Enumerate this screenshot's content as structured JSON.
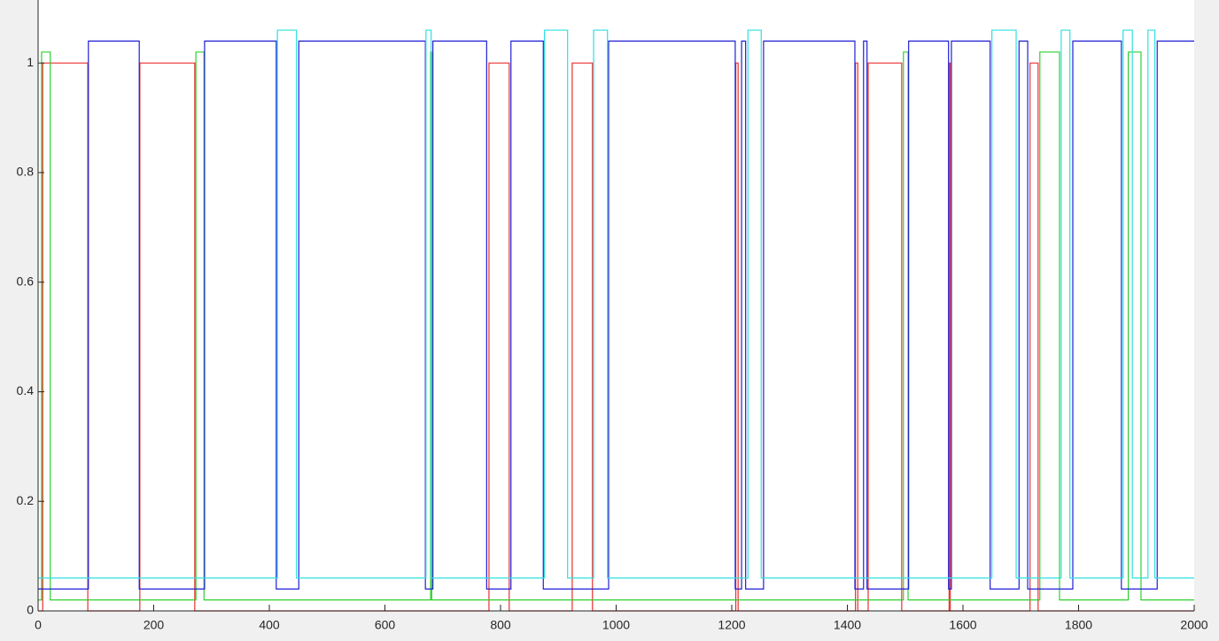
{
  "chart_data": {
    "type": "line",
    "xlim": [
      0,
      2000
    ],
    "ylim": [
      0,
      1.115
    ],
    "xticks": [
      0,
      200,
      400,
      600,
      800,
      1000,
      1200,
      1400,
      1600,
      1800,
      2000
    ],
    "yticks": [
      0,
      0.2,
      0.4,
      0.6,
      0.8,
      1
    ],
    "grid": false,
    "series": [
      {
        "color": "#e8312f",
        "x": [
          0,
          8,
          8,
          86,
          86,
          176,
          176,
          271,
          271,
          780,
          780,
          815,
          815,
          924,
          924,
          959,
          959,
          1207,
          1207,
          1211,
          1211,
          1414,
          1414,
          1418,
          1418,
          1436,
          1436,
          1494,
          1494,
          1576,
          1576,
          1578,
          1578,
          1716,
          1716,
          1730,
          1730,
          2000
        ],
        "values": [
          0,
          0,
          1,
          1,
          0,
          0,
          1,
          1,
          0,
          0,
          1,
          1,
          0,
          0,
          1,
          1,
          0,
          0,
          1,
          1,
          0,
          0,
          1,
          1,
          0,
          0,
          1,
          1,
          0,
          0,
          1,
          1,
          0,
          0,
          1,
          1,
          0,
          0
        ]
      },
      {
        "color": "#2fd02f",
        "x": [
          0,
          6,
          6,
          21,
          21,
          273,
          273,
          287,
          287,
          679,
          679,
          681,
          681,
          1497,
          1497,
          1505,
          1505,
          1733,
          1733,
          1767,
          1767,
          1886,
          1886,
          1908,
          1908,
          2000
        ],
        "values": [
          0.02,
          0.02,
          1.02,
          1.02,
          0.02,
          0.02,
          1.02,
          1.02,
          0.02,
          0.02,
          1.02,
          1.02,
          0.02,
          0.02,
          1.02,
          1.02,
          0.02,
          0.02,
          1.02,
          1.02,
          0.02,
          0.02,
          1.02,
          1.02,
          0.02,
          0.02
        ]
      },
      {
        "color": "#1f1fd6",
        "x": [
          0,
          87,
          87,
          175,
          175,
          288,
          288,
          412,
          412,
          451,
          451,
          670,
          670,
          683,
          683,
          776,
          776,
          818,
          818,
          874,
          874,
          987,
          987,
          1206,
          1206,
          1217,
          1217,
          1224,
          1224,
          1255,
          1255,
          1413,
          1413,
          1428,
          1428,
          1434,
          1434,
          1506,
          1506,
          1575,
          1575,
          1580,
          1580,
          1647,
          1647,
          1697,
          1697,
          1712,
          1712,
          1790,
          1790,
          1874,
          1874,
          1936,
          1936,
          2000
        ],
        "values": [
          0.04,
          0.04,
          1.04,
          1.04,
          0.04,
          0.04,
          1.04,
          1.04,
          0.04,
          0.04,
          1.04,
          1.04,
          0.04,
          0.04,
          1.04,
          1.04,
          0.04,
          0.04,
          1.04,
          1.04,
          0.04,
          0.04,
          1.04,
          1.04,
          0.04,
          0.04,
          1.04,
          1.04,
          0.04,
          0.04,
          1.04,
          1.04,
          0.04,
          0.04,
          1.04,
          1.04,
          0.04,
          0.04,
          1.04,
          1.04,
          0.04,
          0.04,
          1.04,
          1.04,
          0.04,
          0.04,
          1.04,
          1.04,
          0.04,
          0.04,
          1.04,
          1.04,
          0.04,
          0.04,
          1.04,
          1.04
        ]
      },
      {
        "color": "#2fe0e0",
        "x": [
          0,
          414,
          414,
          447,
          447,
          671,
          671,
          680,
          680,
          876,
          876,
          916,
          916,
          961,
          961,
          985,
          985,
          1228,
          1228,
          1251,
          1251,
          1650,
          1650,
          1692,
          1692,
          1770,
          1770,
          1785,
          1785,
          1877,
          1877,
          1893,
          1893,
          1920,
          1920,
          1932,
          1932,
          2000
        ],
        "values": [
          0.06,
          0.06,
          1.06,
          1.06,
          0.06,
          0.06,
          1.06,
          1.06,
          0.06,
          0.06,
          1.06,
          1.06,
          0.06,
          0.06,
          1.06,
          1.06,
          0.06,
          0.06,
          1.06,
          1.06,
          0.06,
          0.06,
          1.06,
          1.06,
          0.06,
          0.06,
          1.06,
          1.06,
          0.06,
          0.06,
          1.06,
          1.06,
          0.06,
          0.06,
          1.06,
          1.06,
          0.06,
          0.06
        ]
      }
    ]
  }
}
